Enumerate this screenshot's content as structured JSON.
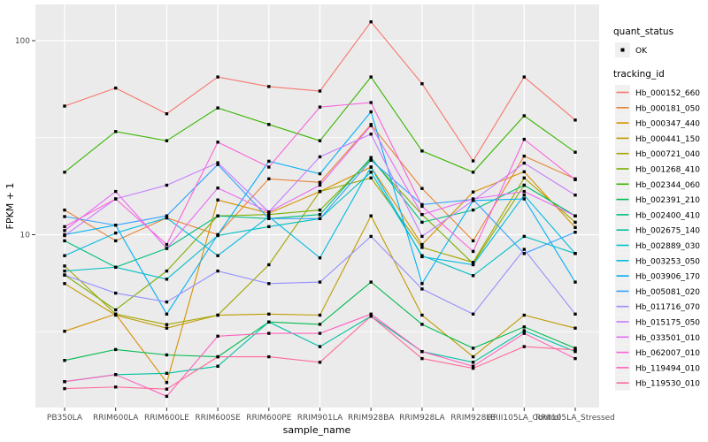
{
  "figure": {
    "ylabel": "FPKM + 1",
    "xlabel": "sample_name",
    "legend": {
      "quant_status_title": "quant_status",
      "quant_status_ok_label": "OK",
      "tracking_id_title": "tracking_id"
    },
    "colors": {
      "panel_bg": "#EBEBEB",
      "grid": "#FFFFFF",
      "axis_text": "#4D4D4D",
      "point": "#000000",
      "legend_key_bg": "#F0F0F0"
    }
  },
  "chart_data": {
    "type": "line",
    "title": "",
    "xlabel": "sample_name",
    "ylabel": "FPKM + 1",
    "y_scale": "log10",
    "ylim": [
      1.29,
      154
    ],
    "y_ticks": [
      10,
      100
    ],
    "y_minor_ticks": [
      3.162,
      31.62
    ],
    "grid": true,
    "legend_position": "right",
    "quant_status": "OK",
    "categories": [
      "PB350LA",
      "RRIM600LA",
      "RRIM600LE",
      "RRIM600SE",
      "RRIM600PE",
      "RRIM901LA",
      "RRIM928BA",
      "RRIM928LA",
      "RRIM928LE",
      "RRII105LA_Control",
      "RRII105LA_Stressed"
    ],
    "series": [
      {
        "name": "Hb_000152_660",
        "color": "#F8766D",
        "values": [
          46,
          57,
          42,
          65,
          58,
          55,
          125,
          60,
          24,
          65,
          39
        ]
      },
      {
        "name": "Hb_000181_050",
        "color": "#EA8331",
        "values": [
          13.4,
          9.3,
          12.2,
          10.0,
          19.4,
          18.6,
          37,
          17.3,
          9.3,
          25.4,
          19.4
        ]
      },
      {
        "name": "Hb_000347_440",
        "color": "#D89000",
        "values": [
          3.18,
          3.9,
          1.73,
          15.1,
          12.9,
          16.7,
          22.3,
          8.9,
          16.6,
          21.1,
          10.9
        ]
      },
      {
        "name": "Hb_000441_150",
        "color": "#C09B00",
        "values": [
          5.6,
          3.85,
          3.3,
          3.85,
          3.9,
          3.85,
          12.5,
          3.85,
          2.35,
          3.85,
          3.3
        ]
      },
      {
        "name": "Hb_000721_040",
        "color": "#A3A500",
        "values": [
          6.9,
          3.9,
          3.44,
          3.85,
          7.0,
          16.7,
          19.6,
          8.6,
          7.2,
          19.6,
          11.6
        ]
      },
      {
        "name": "Hb_001268_410",
        "color": "#7CAE00",
        "values": [
          6.2,
          4.1,
          6.5,
          12.5,
          12.7,
          13.4,
          24.5,
          12.7,
          7.1,
          18.0,
          12.5
        ]
      },
      {
        "name": "Hb_002344_060",
        "color": "#39B600",
        "values": [
          21,
          34,
          30.5,
          45,
          37,
          30.5,
          65,
          27,
          21,
          41,
          26.6
        ]
      },
      {
        "name": "Hb_002391_210",
        "color": "#00BB4E",
        "values": [
          2.25,
          2.56,
          2.4,
          2.35,
          3.55,
          3.45,
          5.7,
          3.45,
          2.6,
          3.35,
          2.6
        ]
      },
      {
        "name": "Hb_002400_410",
        "color": "#00BF7D",
        "values": [
          9.3,
          6.8,
          8.5,
          12.5,
          12.1,
          12.7,
          25,
          11.6,
          13.4,
          18.0,
          12.5
        ]
      },
      {
        "name": "Hb_002675_140",
        "color": "#00C1A3",
        "values": [
          1.75,
          1.9,
          1.93,
          2.1,
          3.55,
          2.65,
          3.8,
          2.5,
          2.2,
          3.2,
          2.5
        ]
      },
      {
        "name": "Hb_002889_030",
        "color": "#00BFC4",
        "values": [
          6.5,
          6.8,
          5.9,
          9.9,
          11.0,
          12.1,
          21,
          7.8,
          6.15,
          9.8,
          8.0
        ]
      },
      {
        "name": "Hb_003253_050",
        "color": "#00BAE0",
        "values": [
          7.8,
          10.2,
          12.2,
          7.8,
          12.4,
          7.6,
          22.3,
          7.7,
          7.0,
          16.0,
          8.0
        ]
      },
      {
        "name": "Hb_003906_170",
        "color": "#00B0F6",
        "values": [
          10.0,
          11.2,
          3.9,
          10.0,
          23.9,
          20.6,
          43,
          5.6,
          15.0,
          15.3,
          5.7
        ]
      },
      {
        "name": "Hb_005081_020",
        "color": "#35A2FF",
        "values": [
          12.4,
          11.2,
          12.5,
          23.0,
          12.1,
          12.1,
          24.2,
          14.3,
          15.2,
          8.0,
          10.3
        ]
      },
      {
        "name": "Hb_011716_070",
        "color": "#9590FF",
        "values": [
          6.2,
          5.0,
          4.5,
          6.5,
          5.6,
          5.7,
          9.8,
          5.25,
          3.9,
          8.4,
          3.9
        ]
      },
      {
        "name": "Hb_015175_050",
        "color": "#C77CFF",
        "values": [
          9.9,
          15.3,
          18.0,
          23.5,
          13.1,
          25.2,
          33,
          9.8,
          15.0,
          23.4,
          16.0
        ]
      },
      {
        "name": "Hb_033501_010",
        "color": "#E76BF3",
        "values": [
          10.5,
          16.7,
          8.5,
          17.4,
          13.1,
          18.0,
          36.5,
          12.7,
          15.3,
          16.7,
          12.5
        ]
      },
      {
        "name": "Hb_062007_010",
        "color": "#FA62DB",
        "values": [
          11.0,
          15.3,
          8.9,
          30,
          22.3,
          45.5,
          48,
          14.0,
          8.2,
          31,
          19.2
        ]
      },
      {
        "name": "Hb_119494_010",
        "color": "#FF62BC",
        "values": [
          1.75,
          1.9,
          1.47,
          3.0,
          3.1,
          3.1,
          3.9,
          2.5,
          2.1,
          3.1,
          2.3
        ]
      },
      {
        "name": "Hb_119530_010",
        "color": "#FF6A98",
        "values": [
          1.61,
          1.64,
          1.6,
          2.35,
          2.35,
          2.2,
          3.8,
          2.3,
          2.05,
          2.65,
          2.55
        ]
      }
    ]
  }
}
